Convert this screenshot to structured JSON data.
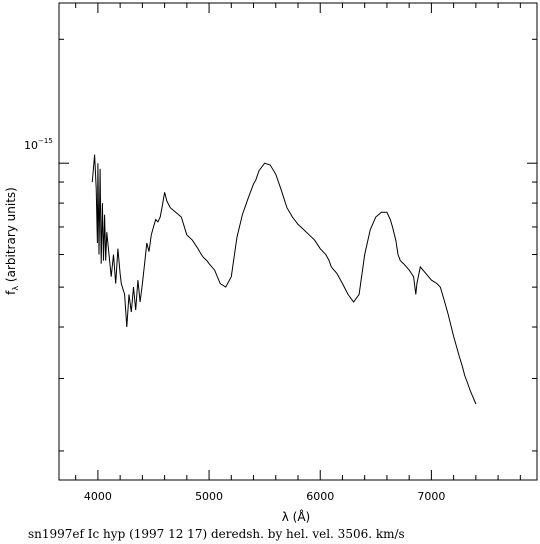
{
  "chart_data": {
    "type": "line",
    "xlabel": "λ (Å)",
    "ylabel": "f_λ (arbitrary units)",
    "ylabel_main": "f",
    "ylabel_sub": "λ",
    "ylabel_rest": " (arbitrary units)",
    "xlim": [
      3650,
      7950
    ],
    "ylim": [
      1.7e-16,
      2.45e-15
    ],
    "yscale": "log",
    "x_ticks_major": [
      4000,
      5000,
      6000,
      7000
    ],
    "x_tick_labels": [
      "4000",
      "5000",
      "6000",
      "7000"
    ],
    "y_tick_label_base": "10",
    "y_tick_label_exp": "−15",
    "y_tick_label_value": 1e-15,
    "caption": "sn1997ef Ic hyp (1997 12 17) deredsh. by hel. vel.  3506. km/s",
    "series": [
      {
        "x": [
          3950,
          3970,
          3985,
          3995,
          4000,
          4010,
          4020,
          4030,
          4040,
          4050,
          4060,
          4070,
          4080,
          4100,
          4120,
          4140,
          4160,
          4180,
          4200,
          4210,
          4240,
          4260,
          4280,
          4300,
          4320,
          4340,
          4360,
          4380,
          4400,
          4420,
          4440,
          4460,
          4480,
          4500,
          4520,
          4540,
          4560,
          4580,
          4600,
          4620,
          4650,
          4700,
          4750,
          4800,
          4850,
          4900,
          4930,
          4950,
          4980,
          5000,
          5050,
          5100,
          5150,
          5200,
          5250,
          5300,
          5350,
          5400,
          5420,
          5450,
          5500,
          5550,
          5600,
          5650,
          5700,
          5750,
          5800,
          5850,
          5900,
          5950,
          6000,
          6050,
          6080,
          6100,
          6150,
          6200,
          6250,
          6300,
          6350,
          6400,
          6450,
          6500,
          6550,
          6600,
          6630,
          6650,
          6680,
          6700,
          6720,
          6750,
          6800,
          6820,
          6840,
          6860,
          6870,
          6900,
          6950,
          7000,
          7050,
          7080,
          7100,
          7120,
          7150,
          7200,
          7250,
          7280,
          7300,
          7320,
          7350,
          7400
        ],
        "y": [
          9e-16,
          1.05e-15,
          8.7e-16,
          6.4e-16,
          1e-15,
          6e-16,
          9.7e-16,
          5.7e-16,
          8e-16,
          5.8e-16,
          7.5e-16,
          5.8e-16,
          6.8e-16,
          6e-16,
          5.3e-16,
          6e-16,
          5.1e-16,
          6.2e-16,
          5.4e-16,
          5.1e-16,
          4.8e-16,
          4e-16,
          4.8e-16,
          4.35e-16,
          5e-16,
          4.4e-16,
          5.2e-16,
          4.6e-16,
          5.1e-16,
          5.7e-16,
          6.4e-16,
          6.1e-16,
          6.7e-16,
          7e-16,
          7.3e-16,
          7.2e-16,
          7.4e-16,
          7.9e-16,
          8.5e-16,
          8.1e-16,
          7.8e-16,
          7.6e-16,
          7.4e-16,
          6.7e-16,
          6.5e-16,
          6.2e-16,
          6e-16,
          5.9e-16,
          5.8e-16,
          5.7e-16,
          5.5e-16,
          5.1e-16,
          5e-16,
          5.3e-16,
          6.6e-16,
          7.5e-16,
          8.2e-16,
          8.9e-16,
          9.1e-16,
          9.6e-16,
          1e-15,
          9.9e-16,
          9.4e-16,
          8.6e-16,
          7.8e-16,
          7.4e-16,
          7.1e-16,
          6.9e-16,
          6.7e-16,
          6.5e-16,
          6.2e-16,
          6e-16,
          5.8e-16,
          5.6e-16,
          5.4e-16,
          5.1e-16,
          4.8e-16,
          4.6e-16,
          4.8e-16,
          6e-16,
          6.9e-16,
          7.4e-16,
          7.6e-16,
          7.6e-16,
          7.3e-16,
          7e-16,
          6.5e-16,
          6e-16,
          5.8e-16,
          5.7e-16,
          5.5e-16,
          5.4e-16,
          5.3e-16,
          4.8e-16,
          5.1e-16,
          5.6e-16,
          5.4e-16,
          5.2e-16,
          5.1e-16,
          5e-16,
          4.8e-16,
          4.6e-16,
          4.3e-16,
          3.8e-16,
          3.4e-16,
          3.2e-16,
          3.05e-16,
          2.95e-16,
          2.8e-16,
          2.6e-16
        ]
      }
    ]
  }
}
